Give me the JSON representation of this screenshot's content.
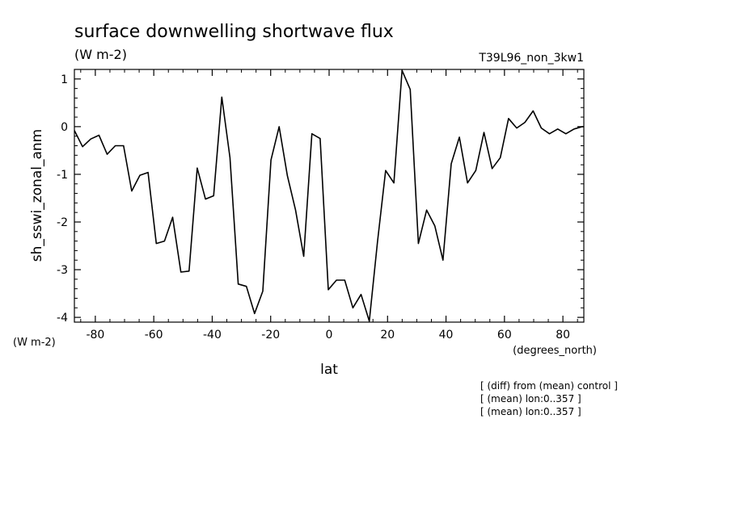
{
  "chart_data": {
    "type": "line",
    "title": "surface downwelling shortwave flux",
    "subtitle": "(W m-2)",
    "run_label": "T39L96_non_3kw1",
    "xlabel": "lat",
    "x_units": "(degrees_north)",
    "ylabel": "sh_sswi_zonal_anm",
    "y_units": "(W m-2)",
    "xlim": [
      -87.16,
      87.16
    ],
    "ylim": [
      -4.1,
      1.2
    ],
    "x_ticks": [
      -80,
      -60,
      -40,
      -20,
      0,
      20,
      40,
      60,
      80
    ],
    "x_tick_labels": [
      "-80",
      "-60",
      "-40",
      "-20",
      "0",
      "20",
      "40",
      "60",
      "80"
    ],
    "y_ticks": [
      -4,
      -3,
      -2,
      -1,
      0,
      1
    ],
    "y_tick_labels": [
      "-4",
      "-3",
      "-2",
      "-1",
      "0",
      "1"
    ],
    "grid": false,
    "legend": "none",
    "notes": [
      "[ (diff) from (mean) control ]",
      "[ (mean) lon:0..357 ]",
      "[ (mean) lon:0..357 ]"
    ],
    "series": [
      {
        "x": [
          -87.16,
          -84.37,
          -81.56,
          -78.76,
          -75.96,
          -73.16,
          -70.35,
          -67.55,
          -64.75,
          -61.94,
          -59.14,
          -56.34,
          -53.53,
          -50.73,
          -47.93,
          -45.13,
          -42.32,
          -39.52,
          -36.72,
          -33.91,
          -31.11,
          -28.31,
          -25.5,
          -22.7,
          -19.9,
          -17.1,
          -14.29,
          -11.49,
          -8.69,
          -5.88,
          -3.08,
          -0.28,
          2.53,
          5.33,
          8.13,
          10.93,
          13.74,
          16.54,
          19.34,
          22.15,
          24.95,
          27.75,
          30.56,
          33.36,
          36.16,
          38.96,
          41.77,
          44.57,
          47.37,
          50.18,
          52.98,
          55.78,
          58.59,
          61.39,
          64.19,
          66.99,
          69.8,
          72.6,
          75.4,
          78.21,
          81.01,
          83.81,
          86.62,
          87.16
        ],
        "y": [
          -0.08,
          -0.42,
          -0.26,
          -0.18,
          -0.58,
          -0.4,
          -0.4,
          -1.35,
          -1.02,
          -0.96,
          -2.45,
          -2.4,
          -1.9,
          -3.05,
          -3.03,
          -0.87,
          -1.52,
          -1.45,
          0.62,
          -0.65,
          -3.3,
          -3.35,
          -3.92,
          -3.45,
          -0.7,
          0.0,
          -1.03,
          -1.75,
          -2.72,
          -0.15,
          -0.25,
          -3.42,
          -3.22,
          -3.22,
          -3.8,
          -3.52,
          -4.08,
          -2.42,
          -0.92,
          -1.18,
          1.18,
          0.78,
          -2.45,
          -1.75,
          -2.08,
          -2.8,
          -0.78,
          -0.22,
          -1.18,
          -0.92,
          -0.12,
          -0.88,
          -0.65,
          0.17,
          -0.03,
          0.09,
          0.33,
          -0.03,
          -0.15,
          -0.05,
          -0.15,
          -0.05,
          0.0,
          0.0
        ]
      }
    ]
  }
}
